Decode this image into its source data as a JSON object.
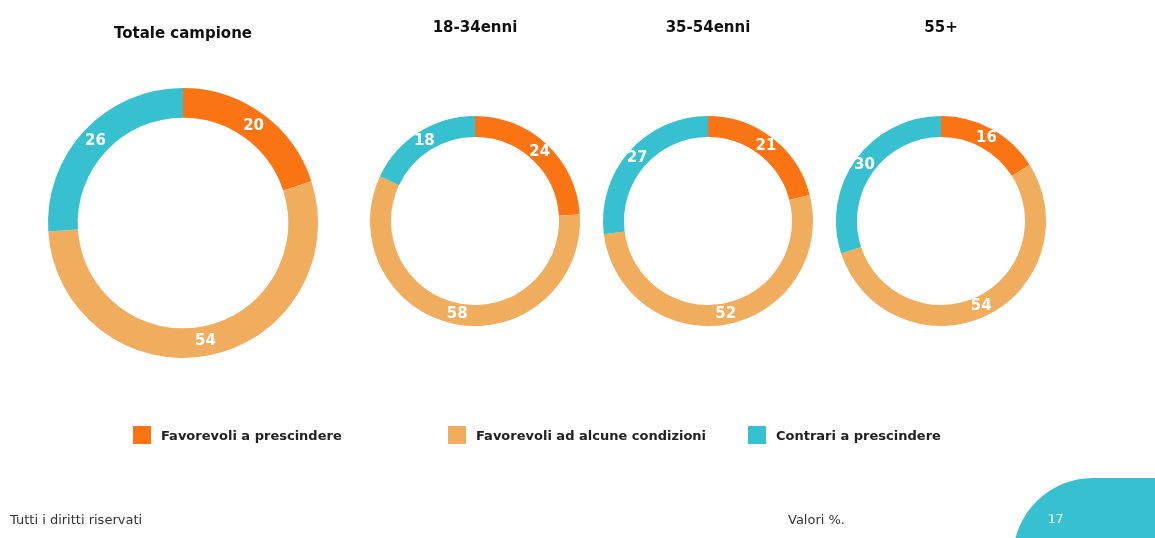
{
  "chart_data": [
    {
      "type": "donut",
      "title": "Totale campione",
      "categories": [
        "Favorevoli a prescindere",
        "Favorevoli ad alcune condizioni",
        "Contrari a prescindere"
      ],
      "values": [
        20,
        54,
        26
      ],
      "colors": [
        "#fa7414",
        "#f0ad5e",
        "#36c0d0"
      ],
      "data_labels": true,
      "legend": "bottom",
      "annotations": [
        "Tutti i diritti riservati",
        "Valori %.",
        "17"
      ]
    },
    {
      "type": "donut",
      "title": "18-34enni",
      "categories": [
        null,
        null,
        null
      ],
      "values": [
        24,
        58,
        18
      ],
      "colors": [
        "#fa7414",
        "#f0ad5e",
        "#36c0d0"
      ],
      "data_labels": true
    },
    {
      "type": "donut",
      "title": "35-54enni",
      "categories": [
        null,
        null,
        null
      ],
      "values": [
        21,
        52,
        27
      ],
      "colors": [
        "#fa7414",
        "#f0ad5e",
        "#36c0d0"
      ],
      "data_labels": true
    },
    {
      "type": "donut",
      "title": "55+",
      "categories": [
        null,
        null,
        null
      ],
      "values": [
        16,
        54,
        30
      ],
      "colors": [
        "#fa7414",
        "#f0ad5e",
        "#36c0d0"
      ],
      "data_labels": true
    }
  ]
}
